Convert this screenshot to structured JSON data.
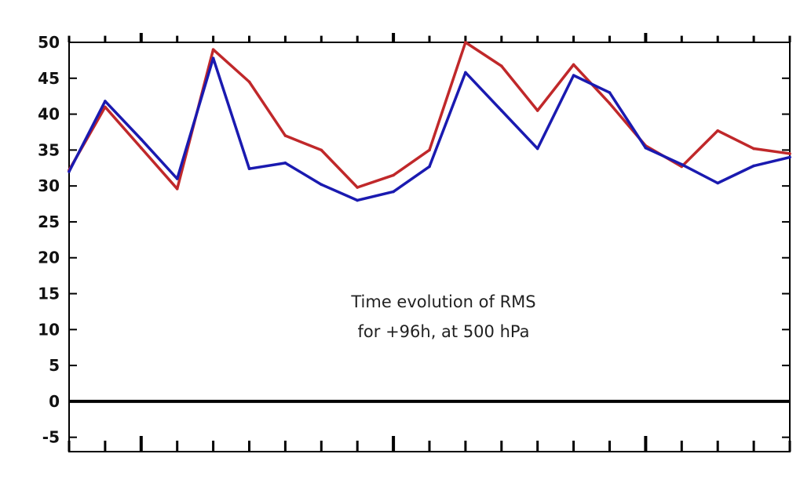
{
  "chart_data": {
    "type": "line",
    "title": "",
    "annotation": [
      "Time evolution of RMS",
      "for +96h, at 500 hPa"
    ],
    "xlabel": "",
    "ylabel": "",
    "ylim": [
      -7,
      50
    ],
    "yticks": [
      -5,
      0,
      5,
      10,
      15,
      20,
      25,
      30,
      35,
      40,
      45,
      50
    ],
    "grid": false,
    "legend": "none",
    "x": [
      0,
      1,
      2,
      3,
      4,
      5,
      6,
      7,
      8,
      9,
      10,
      11,
      12,
      13,
      14,
      15,
      16,
      17,
      18,
      19,
      20
    ],
    "series": [
      {
        "color": "#c0282a",
        "values": [
          32.2,
          41.0,
          35.3,
          29.6,
          49.0,
          44.5,
          37.0,
          35.0,
          29.8,
          31.5,
          35.0,
          50.0,
          46.7,
          40.5,
          46.9,
          41.5,
          35.6,
          32.7,
          37.7,
          35.2,
          34.5
        ]
      },
      {
        "color": "#1a1ab0",
        "values": [
          32.0,
          41.8,
          36.5,
          31.0,
          47.8,
          32.4,
          33.2,
          30.2,
          28.0,
          29.2,
          32.7,
          45.8,
          40.5,
          35.2,
          45.4,
          43.0,
          35.3,
          33.0,
          30.4,
          32.8,
          34.0
        ]
      }
    ],
    "zero_line": 0
  }
}
